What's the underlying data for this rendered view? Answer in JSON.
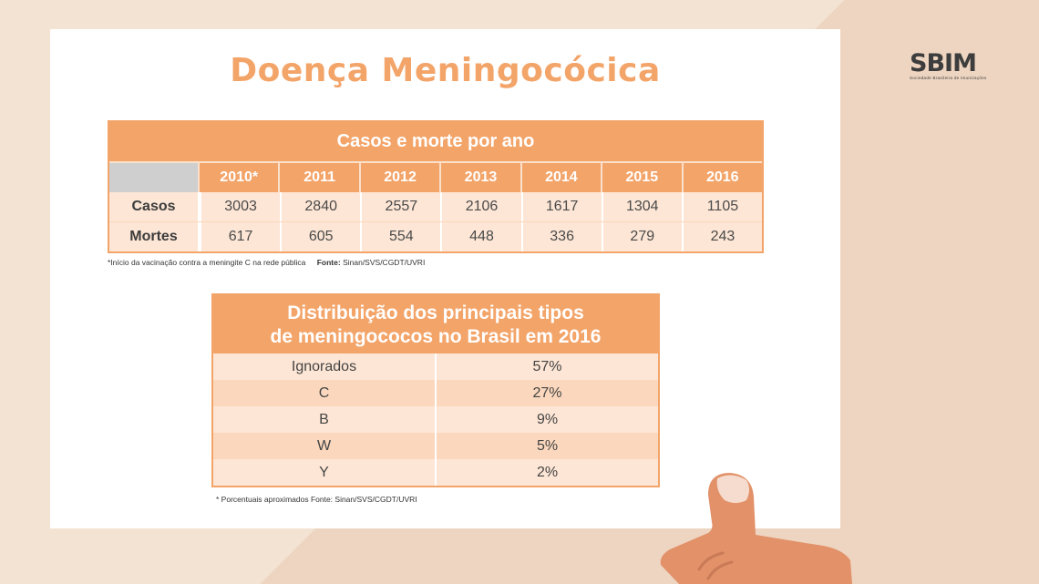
{
  "title": "Doença Meningocócica",
  "logo": {
    "text": "SBIM",
    "subtitle": "Sociedade Brasileira de Imunizações"
  },
  "table_cases": {
    "heading": "Casos e morte por ano",
    "years": [
      "2010*",
      "2011",
      "2012",
      "2013",
      "2014",
      "2015",
      "2016"
    ],
    "rows": [
      {
        "label": "Casos",
        "values": [
          "3003",
          "2840",
          "2557",
          "2106",
          "1617",
          "1304",
          "1105"
        ]
      },
      {
        "label": "Mortes",
        "values": [
          "617",
          "605",
          "554",
          "448",
          "336",
          "279",
          "243"
        ]
      }
    ],
    "footnote": "*Início da vacinação contra a meningite C na rede pública",
    "source_label": "Fonte:",
    "source": "Sinan/SVS/CGDT/UVRI"
  },
  "table_types": {
    "heading_line1": "Distribuição dos principais tipos",
    "heading_line2": "de meningococos no Brasil em 2016",
    "rows": [
      {
        "type": "Ignorados",
        "pct": "57%"
      },
      {
        "type": "C",
        "pct": "27%"
      },
      {
        "type": "B",
        "pct": "9%"
      },
      {
        "type": "W",
        "pct": "5%"
      },
      {
        "type": "Y",
        "pct": "2%"
      }
    ],
    "footnote": "* Porcentuais aproximados Fonte: Sinan/SVS/CGDT/UVRI"
  },
  "colors": {
    "accent": "#f3a469",
    "row_light": "#fde6d5",
    "row_alt": "#fbd8bd",
    "background": "#f3e3d3"
  }
}
